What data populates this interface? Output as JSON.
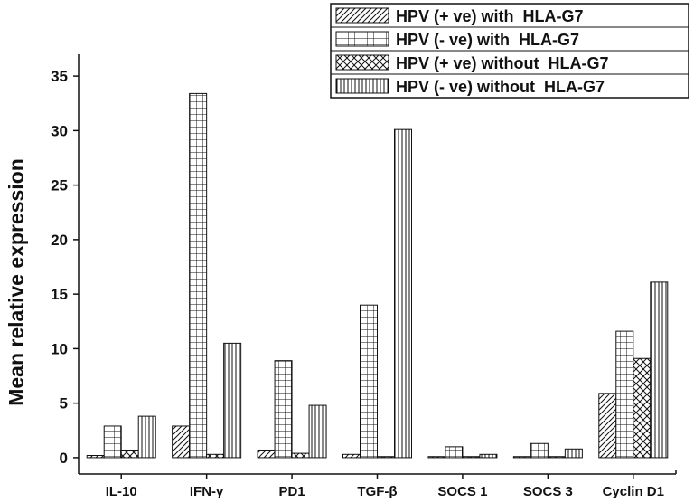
{
  "chart_data": {
    "type": "bar",
    "title": "",
    "xlabel": "",
    "ylabel": "Mean relative expression",
    "ylim": [
      -1.5,
      37
    ],
    "yticks": [
      0,
      5,
      10,
      15,
      20,
      25,
      30,
      35
    ],
    "grid": false,
    "legend_position": "top-right",
    "categories": [
      "IL-10",
      "IFN-γ",
      "PD1",
      "TGF-β",
      "SOCS 1",
      "SOCS 3",
      "Cyclin D1"
    ],
    "series": [
      {
        "name": "HPV (+ ve) with  HLA-G7",
        "pattern": "diagonal-hatch",
        "values": [
          0.2,
          2.9,
          0.7,
          0.3,
          0.1,
          0.1,
          5.9
        ]
      },
      {
        "name": "HPV (- ve) with  HLA-G7",
        "pattern": "grid",
        "values": [
          2.9,
          33.4,
          8.9,
          14.0,
          1.0,
          1.3,
          11.6
        ]
      },
      {
        "name": "HPV (+ ve) without  HLA-G7",
        "pattern": "crosshatch",
        "values": [
          0.7,
          0.3,
          0.4,
          0.1,
          0.1,
          0.1,
          9.1
        ]
      },
      {
        "name": "HPV (- ve) without  HLA-G7",
        "pattern": "vertical-lines",
        "values": [
          3.8,
          10.5,
          4.8,
          30.1,
          0.3,
          0.8,
          16.1
        ]
      }
    ],
    "colors": {
      "stroke": "#111111",
      "background": "#ffffff"
    }
  }
}
